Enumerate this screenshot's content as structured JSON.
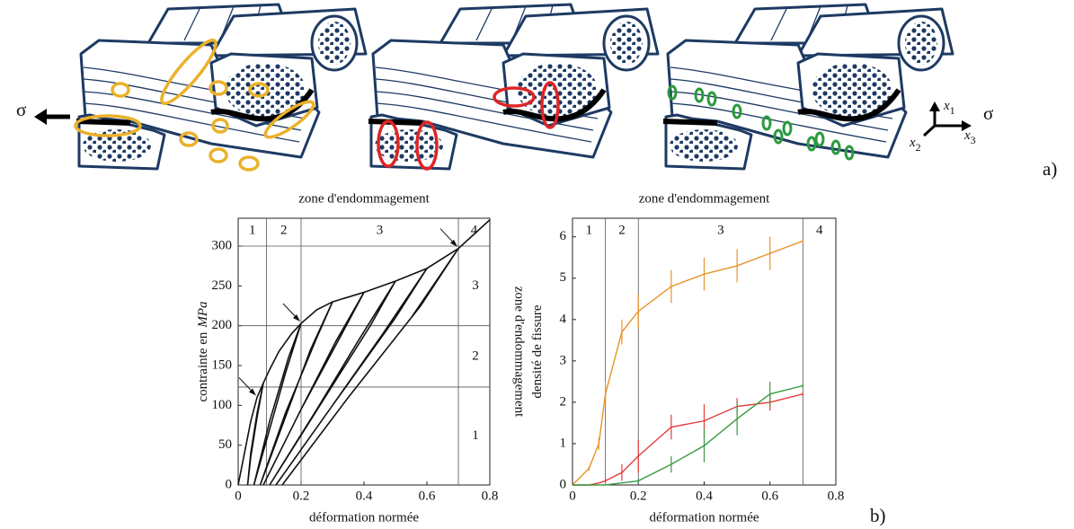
{
  "panel_a": {
    "label": "a)",
    "load_left": "σ",
    "load_right": "σ",
    "axes": [
      {
        "symbol": "x",
        "index": "1"
      },
      {
        "symbol": "x",
        "index": "2"
      },
      {
        "symbol": "x",
        "index": "3"
      }
    ]
  },
  "panel_b": {
    "label": "b)"
  },
  "chart_data": [
    {
      "type": "line",
      "title": "zone d'endommagement",
      "xlabel": "déformation normée",
      "ylabel": "contrainte en",
      "ylabel_unit": "MPa",
      "y2label": "zone d'endommagement",
      "xlim": [
        0,
        0.8
      ],
      "xticks": [
        0,
        0.2,
        0.4,
        0.6,
        0.8
      ],
      "ylim": [
        0,
        335
      ],
      "yticks": [
        0,
        50,
        100,
        150,
        200,
        250,
        300
      ],
      "zone_lines_x": [
        0.09,
        0.2,
        0.7
      ],
      "zone_labels_x": [
        "1",
        "2",
        "3",
        "4"
      ],
      "zone_lines_y": [
        123,
        200,
        300
      ],
      "zone_labels_y": [
        "1",
        "2",
        "3"
      ],
      "series": [
        {
          "color": "#111111",
          "x": [
            0,
            0.02,
            0.04,
            0.06,
            0.08,
            0.1,
            0.13,
            0.17,
            0.2,
            0.25,
            0.3,
            0.4,
            0.5,
            0.6,
            0.7,
            0.75,
            0.8
          ],
          "values": [
            0,
            40,
            80,
            110,
            128,
            145,
            168,
            190,
            203,
            220,
            230,
            242,
            256,
            272,
            297,
            315,
            333
          ]
        },
        {
          "color": "#111111",
          "x": [
            0.08,
            0.06,
            0.04,
            0.03,
            0.04,
            0.06,
            0.08
          ],
          "values": [
            128,
            90,
            40,
            0,
            35,
            85,
            128
          ]
        },
        {
          "color": "#111111",
          "x": [
            0.2,
            0.16,
            0.1,
            0.05,
            0.1,
            0.15,
            0.2
          ],
          "values": [
            203,
            160,
            80,
            0,
            70,
            140,
            203
          ]
        },
        {
          "color": "#111111",
          "x": [
            0.3,
            0.25,
            0.15,
            0.07,
            0.15,
            0.23,
            0.3
          ],
          "values": [
            230,
            185,
            90,
            0,
            85,
            170,
            230
          ]
        },
        {
          "color": "#111111",
          "x": [
            0.4,
            0.33,
            0.2,
            0.08,
            0.2,
            0.31,
            0.4
          ],
          "values": [
            242,
            190,
            95,
            0,
            95,
            180,
            242
          ]
        },
        {
          "color": "#111111",
          "x": [
            0.5,
            0.42,
            0.26,
            0.1,
            0.25,
            0.38,
            0.5
          ],
          "values": [
            256,
            200,
            100,
            0,
            95,
            180,
            256
          ]
        },
        {
          "color": "#111111",
          "x": [
            0.6,
            0.5,
            0.3,
            0.12,
            0.3,
            0.46,
            0.6
          ],
          "values": [
            272,
            210,
            100,
            0,
            100,
            190,
            272
          ]
        },
        {
          "color": "#111111",
          "x": [
            0.7,
            0.58,
            0.35,
            0.14,
            0.35,
            0.55,
            0.7
          ],
          "values": [
            297,
            225,
            110,
            0,
            110,
            210,
            297
          ]
        }
      ]
    },
    {
      "type": "line",
      "title": "zone d'endommagement",
      "xlabel": "déformation normée",
      "ylabel": "densité de fissure",
      "xlim": [
        0,
        0.8
      ],
      "xticks": [
        0,
        0.2,
        0.4,
        0.6,
        0.8
      ],
      "ylim": [
        0,
        6.45
      ],
      "yticks": [
        0,
        1,
        2,
        3,
        4,
        5,
        6
      ],
      "zone_lines_x": [
        0.1,
        0.2,
        0.7
      ],
      "zone_labels_x": [
        "1",
        "2",
        "3",
        "4"
      ],
      "series": [
        {
          "color": "#e8922a",
          "x": [
            0,
            0.05,
            0.08,
            0.1,
            0.15,
            0.2,
            0.3,
            0.4,
            0.5,
            0.6,
            0.7
          ],
          "values": [
            0,
            0.4,
            1,
            2.2,
            3.7,
            4.2,
            4.8,
            5.1,
            5.3,
            5.6,
            5.9
          ],
          "errors": [
            0,
            0.05,
            0.15,
            0.3,
            0.3,
            0.4,
            0.4,
            0.4,
            0.4,
            0.4,
            0.05
          ]
        },
        {
          "color": "#e53b3b",
          "x": [
            0,
            0.05,
            0.08,
            0.1,
            0.15,
            0.2,
            0.3,
            0.4,
            0.5,
            0.6,
            0.7
          ],
          "values": [
            0,
            0,
            0.05,
            0.1,
            0.3,
            0.7,
            1.4,
            1.55,
            1.9,
            2.0,
            2.2
          ],
          "errors": [
            0,
            0,
            0,
            0.05,
            0.2,
            0.4,
            0.3,
            0.4,
            0.2,
            0.2,
            0.05
          ]
        },
        {
          "color": "#3a9a44",
          "x": [
            0,
            0.05,
            0.08,
            0.1,
            0.15,
            0.2,
            0.3,
            0.4,
            0.5,
            0.6,
            0.7
          ],
          "values": [
            0,
            0,
            0,
            0,
            0.05,
            0.1,
            0.5,
            0.95,
            1.6,
            2.2,
            2.4
          ],
          "errors": [
            0,
            0,
            0,
            0,
            0,
            0.05,
            0.2,
            0.4,
            0.4,
            0.3,
            0.05
          ]
        }
      ]
    }
  ]
}
